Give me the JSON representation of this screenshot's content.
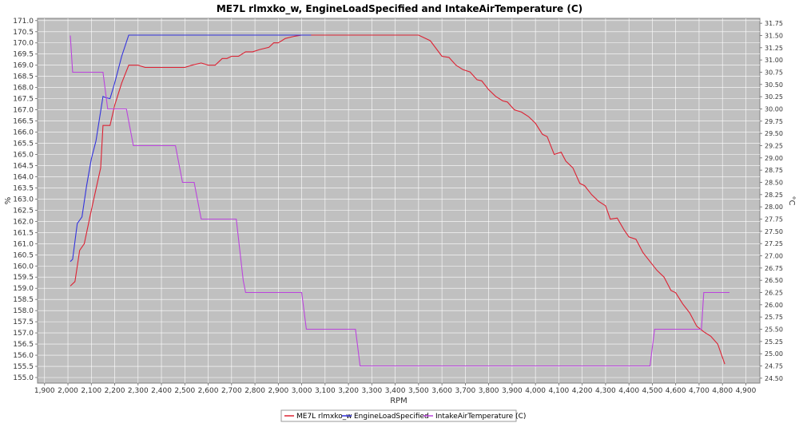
{
  "chart_data": {
    "type": "line",
    "title": "ME7L rlmxko_w, EngineLoadSpecified and IntakeAirTemperature (C)",
    "xlabel": "RPM",
    "ylabel_left": "%",
    "ylabel_right": "°C",
    "xlim": [
      1870,
      4960
    ],
    "ylim_left": [
      154.75,
      171.1
    ],
    "ylim_right": [
      24.4,
      31.85
    ],
    "x_ticks": [
      1900,
      2000,
      2100,
      2200,
      2300,
      2400,
      2500,
      2600,
      2700,
      2800,
      2900,
      3000,
      3100,
      3200,
      3300,
      3400,
      3500,
      3600,
      3700,
      3800,
      3900,
      4000,
      4100,
      4200,
      4300,
      4400,
      4500,
      4600,
      4700,
      4800,
      4900
    ],
    "x_tick_labels": [
      "1,900",
      "2,000",
      "2,100",
      "2,200",
      "2,300",
      "2,400",
      "2,500",
      "2,600",
      "2,700",
      "2,800",
      "2,900",
      "3,000",
      "3,100",
      "3,200",
      "3,300",
      "3,400",
      "3,500",
      "3,600",
      "3,700",
      "3,800",
      "3,900",
      "4,000",
      "4,100",
      "4,200",
      "4,300",
      "4,400",
      "4,500",
      "4,600",
      "4,700",
      "4,800",
      "4,900"
    ],
    "y_left_ticks": [
      155.0,
      155.5,
      156.0,
      156.5,
      157.0,
      157.5,
      158.0,
      158.5,
      159.0,
      159.5,
      160.0,
      160.5,
      161.0,
      161.5,
      162.0,
      162.5,
      163.0,
      163.5,
      164.0,
      164.5,
      165.0,
      165.5,
      166.0,
      166.5,
      167.0,
      167.5,
      168.0,
      168.5,
      169.0,
      169.5,
      170.0,
      170.5,
      171.0
    ],
    "y_left_tick_labels": [
      "155.0",
      "155.5",
      "156.0",
      "156.5",
      "157.0",
      "157.5",
      "158.0",
      "158.5",
      "159.0",
      "159.5",
      "160.0",
      "160.5",
      "161.0",
      "161.5",
      "162.0",
      "162.5",
      "163.0",
      "163.5",
      "164.0",
      "164.5",
      "165.0",
      "165.5",
      "166.0",
      "166.5",
      "167.0",
      "167.5",
      "168.0",
      "168.5",
      "169.0",
      "169.5",
      "170.0",
      "170.5",
      "171.0"
    ],
    "y_right_ticks": [
      24.5,
      24.75,
      25.0,
      25.25,
      25.5,
      25.75,
      26.0,
      26.25,
      26.5,
      26.75,
      27.0,
      27.25,
      27.5,
      27.75,
      28.0,
      28.25,
      28.5,
      28.75,
      29.0,
      29.25,
      29.5,
      29.75,
      30.0,
      30.25,
      30.5,
      30.75,
      31.0,
      31.25,
      31.5,
      31.75
    ],
    "y_right_tick_labels": [
      "24.50",
      "24.75",
      "25.00",
      "25.25",
      "25.50",
      "25.75",
      "26.00",
      "26.25",
      "26.50",
      "26.75",
      "27.00",
      "27.25",
      "27.50",
      "27.75",
      "28.00",
      "28.25",
      "28.50",
      "28.75",
      "29.00",
      "29.25",
      "29.50",
      "29.75",
      "30.00",
      "30.25",
      "30.50",
      "30.75",
      "31.00",
      "31.25",
      "31.50",
      "31.75"
    ],
    "grid": true,
    "legend_position": "bottom-center",
    "background": "#c0c0c0",
    "series": [
      {
        "name": "ME7L rlmxko_w",
        "color": "#dd2233",
        "axis": "left",
        "points": [
          [
            2010,
            159.1
          ],
          [
            2030,
            159.3
          ],
          [
            2050,
            160.7
          ],
          [
            2070,
            161.0
          ],
          [
            2100,
            162.5
          ],
          [
            2140,
            164.4
          ],
          [
            2150,
            166.3
          ],
          [
            2180,
            166.3
          ],
          [
            2200,
            167.2
          ],
          [
            2230,
            168.2
          ],
          [
            2260,
            169.0
          ],
          [
            2300,
            169.0
          ],
          [
            2330,
            168.9
          ],
          [
            2400,
            168.9
          ],
          [
            2450,
            168.9
          ],
          [
            2500,
            168.9
          ],
          [
            2530,
            169.0
          ],
          [
            2570,
            169.1
          ],
          [
            2600,
            169.0
          ],
          [
            2630,
            169.0
          ],
          [
            2660,
            169.3
          ],
          [
            2680,
            169.3
          ],
          [
            2700,
            169.4
          ],
          [
            2730,
            169.4
          ],
          [
            2760,
            169.6
          ],
          [
            2790,
            169.6
          ],
          [
            2820,
            169.7
          ],
          [
            2860,
            169.8
          ],
          [
            2880,
            170.0
          ],
          [
            2900,
            170.0
          ],
          [
            2930,
            170.2
          ],
          [
            2970,
            170.3
          ],
          [
            3000,
            170.35
          ],
          [
            3100,
            170.35
          ],
          [
            3200,
            170.35
          ],
          [
            3300,
            170.35
          ],
          [
            3400,
            170.35
          ],
          [
            3500,
            170.35
          ],
          [
            3550,
            170.1
          ],
          [
            3600,
            169.4
          ],
          [
            3630,
            169.35
          ],
          [
            3660,
            169.0
          ],
          [
            3690,
            168.8
          ],
          [
            3720,
            168.7
          ],
          [
            3750,
            168.35
          ],
          [
            3770,
            168.3
          ],
          [
            3800,
            167.9
          ],
          [
            3830,
            167.6
          ],
          [
            3860,
            167.4
          ],
          [
            3880,
            167.35
          ],
          [
            3910,
            167.0
          ],
          [
            3940,
            166.9
          ],
          [
            3970,
            166.7
          ],
          [
            4000,
            166.4
          ],
          [
            4030,
            165.9
          ],
          [
            4050,
            165.8
          ],
          [
            4080,
            165.0
          ],
          [
            4110,
            165.1
          ],
          [
            4130,
            164.7
          ],
          [
            4160,
            164.4
          ],
          [
            4190,
            163.7
          ],
          [
            4210,
            163.6
          ],
          [
            4240,
            163.2
          ],
          [
            4270,
            162.9
          ],
          [
            4300,
            162.7
          ],
          [
            4320,
            162.1
          ],
          [
            4350,
            162.15
          ],
          [
            4380,
            161.6
          ],
          [
            4400,
            161.3
          ],
          [
            4430,
            161.2
          ],
          [
            4460,
            160.6
          ],
          [
            4490,
            160.2
          ],
          [
            4520,
            159.8
          ],
          [
            4550,
            159.5
          ],
          [
            4580,
            158.9
          ],
          [
            4600,
            158.8
          ],
          [
            4630,
            158.3
          ],
          [
            4660,
            157.9
          ],
          [
            4690,
            157.3
          ],
          [
            4720,
            157.05
          ],
          [
            4750,
            156.85
          ],
          [
            4780,
            156.5
          ],
          [
            4800,
            155.9
          ],
          [
            4810,
            155.6
          ]
        ]
      },
      {
        "name": "EngineLoadSpecified",
        "color": "#3333dd",
        "axis": "left",
        "points": [
          [
            2010,
            160.2
          ],
          [
            2020,
            160.3
          ],
          [
            2040,
            161.9
          ],
          [
            2060,
            162.2
          ],
          [
            2080,
            163.6
          ],
          [
            2100,
            164.8
          ],
          [
            2120,
            165.6
          ],
          [
            2150,
            167.6
          ],
          [
            2160,
            167.55
          ],
          [
            2180,
            167.5
          ],
          [
            2200,
            168.2
          ],
          [
            2230,
            169.4
          ],
          [
            2260,
            170.35
          ],
          [
            2300,
            170.35
          ],
          [
            2400,
            170.35
          ],
          [
            2500,
            170.35
          ],
          [
            2600,
            170.35
          ],
          [
            2700,
            170.35
          ],
          [
            2800,
            170.35
          ],
          [
            2900,
            170.35
          ],
          [
            3000,
            170.35
          ],
          [
            3040,
            170.35
          ]
        ]
      },
      {
        "name": "IntakeAirTemperature (C)",
        "color": "#bb44dd",
        "axis": "right",
        "points": [
          [
            2010,
            31.5
          ],
          [
            2020,
            30.75
          ],
          [
            2040,
            30.75
          ],
          [
            2100,
            30.75
          ],
          [
            2150,
            30.75
          ],
          [
            2170,
            30.0
          ],
          [
            2200,
            30.0
          ],
          [
            2250,
            30.0
          ],
          [
            2280,
            29.25
          ],
          [
            2300,
            29.25
          ],
          [
            2400,
            29.25
          ],
          [
            2460,
            29.25
          ],
          [
            2490,
            28.5
          ],
          [
            2500,
            28.5
          ],
          [
            2540,
            28.5
          ],
          [
            2570,
            27.75
          ],
          [
            2600,
            27.75
          ],
          [
            2700,
            27.75
          ],
          [
            2720,
            27.75
          ],
          [
            2750,
            26.5
          ],
          [
            2760,
            26.25
          ],
          [
            2800,
            26.25
          ],
          [
            2900,
            26.25
          ],
          [
            3000,
            26.25
          ],
          [
            3020,
            25.5
          ],
          [
            3100,
            25.5
          ],
          [
            3200,
            25.5
          ],
          [
            3230,
            25.5
          ],
          [
            3250,
            24.75
          ],
          [
            3300,
            24.75
          ],
          [
            3400,
            24.75
          ],
          [
            3500,
            24.75
          ],
          [
            3600,
            24.75
          ],
          [
            3700,
            24.75
          ],
          [
            3800,
            24.75
          ],
          [
            3900,
            24.75
          ],
          [
            4000,
            24.75
          ],
          [
            4100,
            24.75
          ],
          [
            4200,
            24.75
          ],
          [
            4300,
            24.75
          ],
          [
            4400,
            24.75
          ],
          [
            4490,
            24.75
          ],
          [
            4510,
            25.5
          ],
          [
            4600,
            25.5
          ],
          [
            4700,
            25.5
          ],
          [
            4710,
            25.5
          ],
          [
            4720,
            26.25
          ],
          [
            4800,
            26.25
          ],
          [
            4830,
            26.25
          ]
        ]
      }
    ]
  }
}
